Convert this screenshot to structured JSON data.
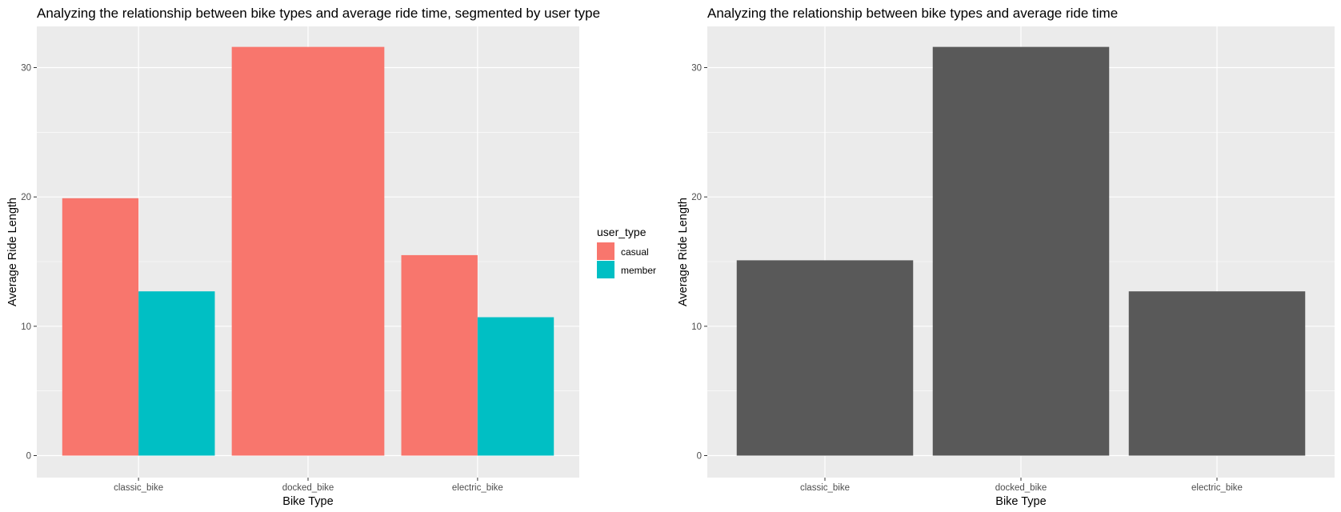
{
  "chart_data": [
    {
      "type": "bar",
      "title": "Analyzing the relationship between bike types and average ride time, segmented by user type",
      "xlabel": "Bike Type",
      "ylabel": "Average Ride Length",
      "categories": [
        "classic_bike",
        "docked_bike",
        "electric_bike"
      ],
      "ylim": [
        0,
        32
      ],
      "yticks": [
        0,
        10,
        20,
        30
      ],
      "grid": true,
      "legend": {
        "title": "user_type",
        "position": "right"
      },
      "series": [
        {
          "name": "casual",
          "color": "#F8766D",
          "values": [
            19.9,
            31.6,
            15.5
          ]
        },
        {
          "name": "member",
          "color": "#00BFC4",
          "values": [
            12.7,
            null,
            10.7
          ]
        }
      ]
    },
    {
      "type": "bar",
      "title": "Analyzing the relationship between bike types and average ride time",
      "xlabel": "Bike Type",
      "ylabel": "Average Ride Length",
      "categories": [
        "classic_bike",
        "docked_bike",
        "electric_bike"
      ],
      "ylim": [
        0,
        32
      ],
      "yticks": [
        0,
        10,
        20,
        30
      ],
      "grid": true,
      "color": "#595959",
      "values": [
        15.1,
        31.6,
        12.7
      ]
    }
  ]
}
